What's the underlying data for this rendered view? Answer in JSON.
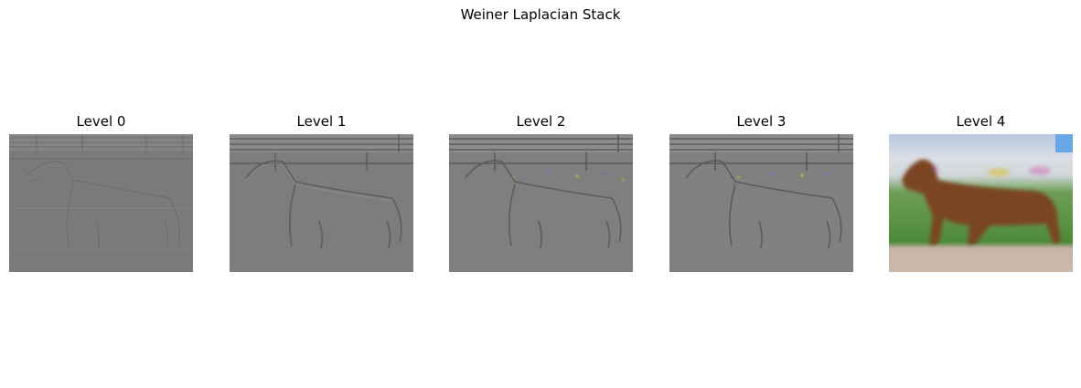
{
  "figure": {
    "title": "Weiner Laplacian Stack"
  },
  "panels": [
    {
      "label": "Level 0",
      "kind": "laplacian-fine"
    },
    {
      "label": "Level 1",
      "kind": "laplacian-mid"
    },
    {
      "label": "Level 2",
      "kind": "laplacian-color"
    },
    {
      "label": "Level 3",
      "kind": "laplacian-color"
    },
    {
      "label": "Level 4",
      "kind": "lowpass-residual"
    }
  ],
  "colors": {
    "laplacian_gray": "#7b7b7b",
    "sky": "#6aa6e6",
    "grass": "#4e8a3a",
    "dog": "#7a4522",
    "ground": "#c9b7a8"
  }
}
